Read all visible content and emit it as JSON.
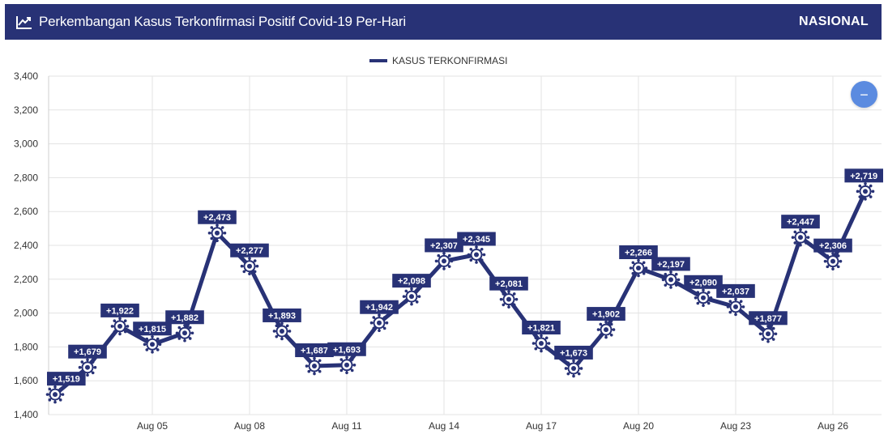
{
  "header": {
    "title": "Perkembangan Kasus Terkonfirmasi Positif Covid-19 Per-Hari",
    "scope": "NASIONAL",
    "icon": "line-chart-icon"
  },
  "controls": {
    "collapse_label": "−",
    "collapse_icon": "minus-icon"
  },
  "colors": {
    "header_bg": "#283276",
    "series": "#283276",
    "grid": "#e3e3e3",
    "collapse_button": "#5b8be0"
  },
  "chart_data": {
    "type": "line",
    "legend_position": "top-center",
    "grid": true,
    "ylim": [
      1400,
      3400
    ],
    "y_ticks": [
      "1,400",
      "1,600",
      "1,800",
      "2,000",
      "2,200",
      "2,400",
      "2,600",
      "2,800",
      "3,000",
      "3,200",
      "3,400"
    ],
    "x": [
      "Aug 02",
      "Aug 03",
      "Aug 04",
      "Aug 05",
      "Aug 06",
      "Aug 07",
      "Aug 08",
      "Aug 09",
      "Aug 10",
      "Aug 11",
      "Aug 12",
      "Aug 13",
      "Aug 14",
      "Aug 15",
      "Aug 16",
      "Aug 17",
      "Aug 18",
      "Aug 19",
      "Aug 20",
      "Aug 21",
      "Aug 22",
      "Aug 23",
      "Aug 24",
      "Aug 25",
      "Aug 26",
      "Aug 27"
    ],
    "x_ticks": [
      "Aug 05",
      "Aug 08",
      "Aug 11",
      "Aug 14",
      "Aug 17",
      "Aug 20",
      "Aug 23",
      "Aug 26"
    ],
    "series": [
      {
        "name": "KASUS TERKONFIRMASI",
        "values": [
          1519,
          1679,
          1922,
          1815,
          1882,
          2473,
          2277,
          1893,
          1687,
          1693,
          1942,
          2098,
          2307,
          2345,
          2081,
          1821,
          1673,
          1902,
          2266,
          2197,
          2090,
          2037,
          1877,
          2447,
          2306,
          2719
        ],
        "labels": [
          "+1,519",
          "+1,679",
          "+1,922",
          "+1,815",
          "+1,882",
          "+2,473",
          "+2,277",
          "+1,893",
          "+1,687",
          "+1,693",
          "+1,942",
          "+2,098",
          "+2,307",
          "+2,345",
          "+2,081",
          "+1,821",
          "+1,673",
          "+1,902",
          "+2,266",
          "+2,197",
          "+2,090",
          "+2,037",
          "+1,877",
          "+2,447",
          "+2,306",
          "+2,719"
        ]
      }
    ]
  }
}
